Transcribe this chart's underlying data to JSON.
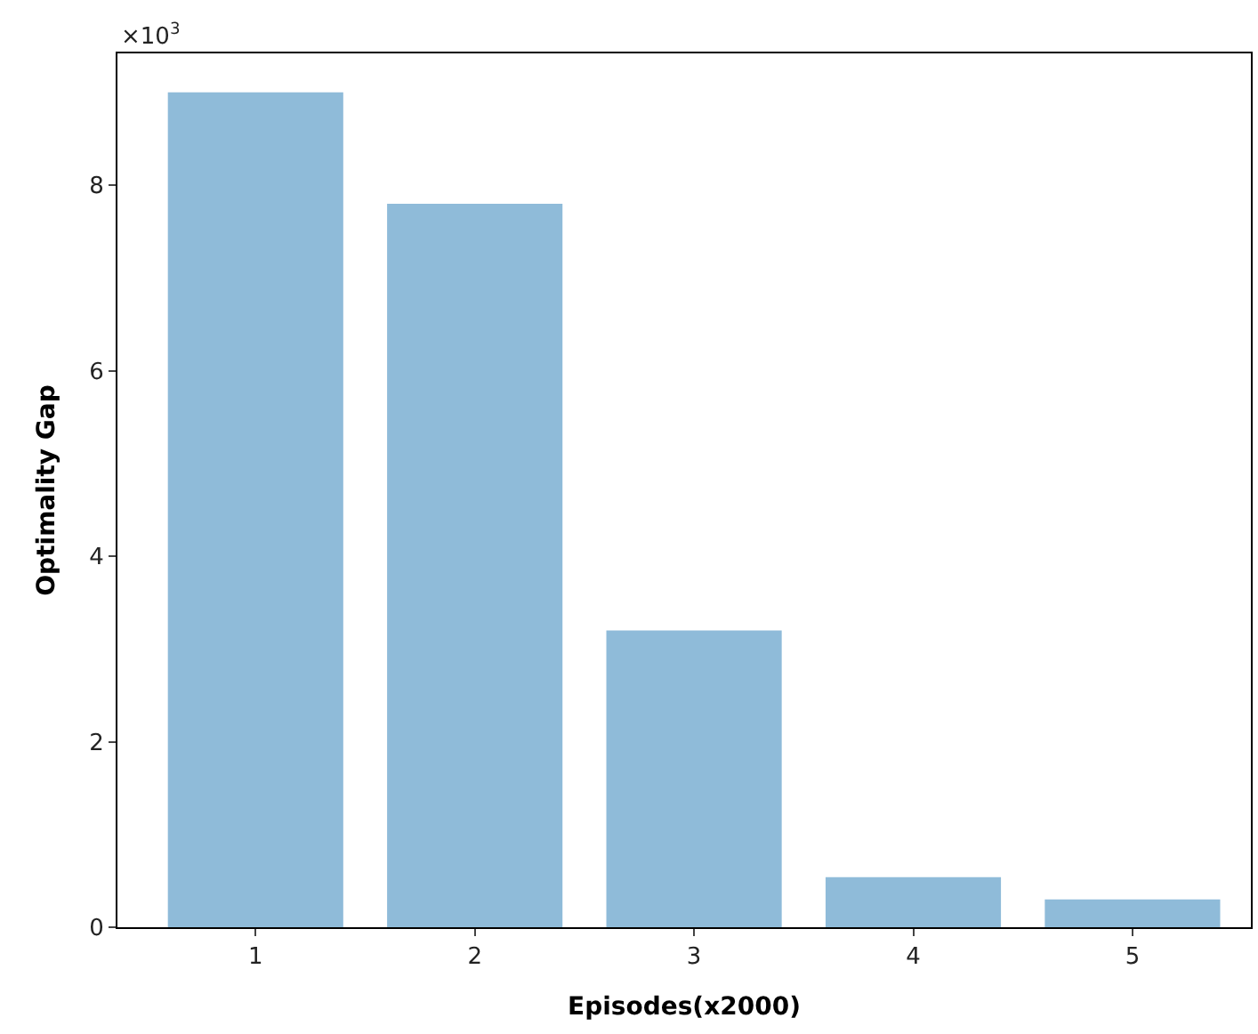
{
  "chart_data": {
    "type": "bar",
    "xlabel": "Episodes(x2000)",
    "ylabel": "Optimality Gap",
    "annotations": [
      "×10$^{3}$"
    ],
    "categories": [
      "1",
      "2",
      "3",
      "4",
      "5"
    ],
    "values": [
      9.0,
      7.8,
      3.2,
      0.54,
      0.3
    ],
    "color": "#8fbbd9",
    "ylim": [
      0,
      9.42
    ],
    "yticks": [
      0,
      2,
      4,
      6,
      8
    ]
  }
}
